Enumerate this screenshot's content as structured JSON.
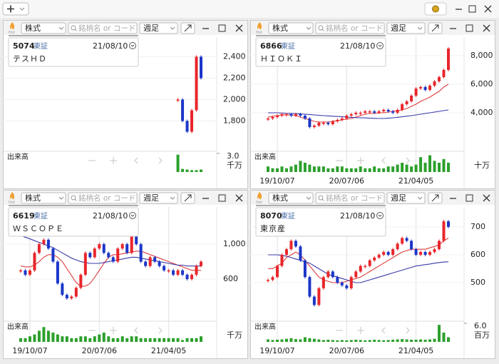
{
  "panels": [
    {
      "hot": "Hot",
      "market_select": "株式",
      "search_placeholder": "銘柄名 or コード",
      "period_select": "週足",
      "code": "5074",
      "exchange": "東証",
      "date": "21/08/10",
      "name": "テスＨＤ",
      "volume_label": "出来高",
      "volume_unit": "千万",
      "chart_data": {
        "type": "stock",
        "up_color": "#e8262b",
        "down_color": "#1c36c8",
        "values": [
          null,
          null,
          null,
          null,
          null,
          null,
          null,
          null,
          null,
          null,
          null,
          null,
          null,
          null,
          null,
          null,
          null,
          null,
          null,
          null,
          null,
          null,
          null,
          null,
          null,
          null,
          null,
          null,
          null,
          null,
          null,
          null,
          null,
          null,
          2000,
          1800,
          1700,
          1900,
          2400,
          2200
        ],
        "ylim": [
          1530,
          2530
        ],
        "yticks": [
          {
            "value": 1800,
            "label": "1,800"
          },
          {
            "value": 2000,
            "label": "2,000"
          },
          {
            "value": 2200,
            "label": "2,200"
          },
          {
            "value": 2400,
            "label": "2,400"
          }
        ],
        "volume": {
          "color": "#2ca02c",
          "values": [
            null,
            null,
            null,
            null,
            null,
            null,
            null,
            null,
            null,
            null,
            null,
            null,
            null,
            null,
            null,
            null,
            null,
            null,
            null,
            null,
            null,
            null,
            null,
            null,
            null,
            null,
            null,
            null,
            null,
            null,
            null,
            null,
            null,
            null,
            2.8,
            0.5,
            0.4,
            0.3,
            0.3,
            0.4
          ],
          "ylim": [
            0,
            3
          ],
          "yticks": [
            {
              "value": 3,
              "label": "3.0"
            }
          ]
        }
      }
    },
    {
      "hot": "Hot",
      "market_select": "株式",
      "search_placeholder": "銘柄名 or コード",
      "period_select": "週足",
      "code": "6866",
      "exchange": "東証",
      "date": "21/08/10",
      "name": "ＨＩＯＫＩ",
      "volume_label": "出来高",
      "volume_unit": "十万",
      "chart_data": {
        "type": "stock",
        "up_color": "#e8262b",
        "down_color": "#1c36c8",
        "categories": [
          null,
          null,
          "19/10/07",
          null,
          null,
          null,
          null,
          null,
          null,
          null,
          null,
          null,
          null,
          null,
          null,
          null,
          null,
          "20/07/06",
          null,
          null,
          null,
          null,
          null,
          null,
          null,
          null,
          null,
          null,
          null,
          null,
          null,
          null,
          "21/04/05",
          null,
          null,
          null,
          null,
          null,
          null,
          null
        ],
        "values": [
          3600,
          3700,
          3800,
          3900,
          3900,
          3800,
          3900,
          3800,
          3600,
          3000,
          3100,
          3300,
          3300,
          3200,
          3400,
          3500,
          3600,
          3800,
          3900,
          4000,
          4000,
          4100,
          4100,
          4000,
          4100,
          4200,
          4100,
          4000,
          4200,
          4600,
          4800,
          5200,
          5700,
          5800,
          5600,
          5900,
          6200,
          6500,
          7000,
          8500
        ],
        "series": [
          {
            "color": "#e03c3c",
            "values": [
              3700,
              3750,
              3800,
              3850,
              3850,
              3850,
              3800,
              3700,
              3600,
              3500,
              3400,
              3350,
              3350,
              3350,
              3400,
              3450,
              3500,
              3550,
              3600,
              3700,
              3800,
              3900,
              3950,
              3950,
              4000,
              4000,
              4050,
              4100,
              4150,
              4200,
              4300,
              4450,
              4600,
              4800,
              4950,
              5100,
              5300,
              5500,
              5800,
              6000
            ]
          },
          {
            "color": "#3a3aa8",
            "values": [
              4000,
              4000,
              4000,
              3980,
              3960,
              3950,
              3940,
              3920,
              3900,
              3880,
              3850,
              3820,
              3800,
              3780,
              3760,
              3740,
              3720,
              3700,
              3680,
              3660,
              3650,
              3640,
              3620,
              3610,
              3600,
              3600,
              3620,
              3650,
              3680,
              3720,
              3760,
              3800,
              3850,
              3900,
              3950,
              4000,
              4050,
              4100,
              4150,
              4200
            ]
          }
        ],
        "ylim": [
          1400,
          8900
        ],
        "yticks": [
          {
            "value": 4000,
            "label": "4,000"
          },
          {
            "value": 6000,
            "label": "6,000"
          },
          {
            "value": 8000,
            "label": "8,000"
          }
        ],
        "volume": {
          "color": "#2ca02c",
          "values": [
            3,
            2,
            2,
            3,
            2,
            3,
            4,
            6,
            5,
            4,
            3,
            3,
            3,
            2,
            2,
            3,
            3,
            2,
            2,
            2,
            3,
            2,
            2,
            3,
            2,
            2,
            3,
            3,
            4,
            5,
            4,
            3,
            4,
            8,
            5,
            9,
            6,
            5,
            7,
            5
          ],
          "ylim": [
            0,
            10
          ]
        }
      }
    },
    {
      "hot": "Hot",
      "market_select": "株式",
      "search_placeholder": "銘柄名 or コード",
      "period_select": "週足",
      "code": "6619",
      "exchange": "東証",
      "date": "21/08/10",
      "name": "ＷＳＣＯＰＥ",
      "volume_label": "出来高",
      "volume_unit": "千万",
      "chart_data": {
        "type": "stock",
        "up_color": "#e8262b",
        "down_color": "#1c36c8",
        "categories": [
          null,
          null,
          "19/10/07",
          null,
          null,
          null,
          null,
          null,
          null,
          null,
          null,
          null,
          null,
          null,
          null,
          null,
          null,
          "20/07/06",
          null,
          null,
          null,
          null,
          null,
          null,
          null,
          null,
          null,
          null,
          null,
          null,
          null,
          null,
          "21/04/05",
          null,
          null,
          null,
          null,
          null,
          null,
          null
        ],
        "values": [
          700,
          650,
          700,
          900,
          1000,
          1050,
          950,
          800,
          550,
          420,
          380,
          400,
          500,
          650,
          900,
          850,
          950,
          1000,
          900,
          850,
          800,
          950,
          1000,
          900,
          1100,
          1000,
          800,
          750,
          850,
          800,
          750,
          700,
          700,
          650,
          700,
          650,
          600,
          650,
          750,
          800
        ],
        "series": [
          {
            "color": "#e03c3c",
            "values": [
              750,
              740,
              740,
              760,
              800,
              850,
              880,
              880,
              850,
              800,
              720,
              640,
              560,
              520,
              520,
              550,
              620,
              700,
              780,
              850,
              880,
              880,
              890,
              900,
              910,
              920,
              920,
              900,
              880,
              860,
              840,
              820,
              800,
              780,
              760,
              740,
              720,
              700,
              700,
              700
            ]
          },
          {
            "color": "#3a3aa8",
            "values": [
              1100,
              1080,
              1060,
              1040,
              1020,
              1000,
              980,
              960,
              930,
              900,
              870,
              840,
              820,
              800,
              790,
              780,
              780,
              780,
              790,
              800,
              810,
              820,
              830,
              840,
              850,
              850,
              840,
              830,
              820,
              810,
              800,
              790,
              780,
              770,
              760,
              760,
              750,
              750,
              750,
              750
            ]
          }
        ],
        "ylim": [
          135,
          1360
        ],
        "yticks": [
          600,
          {
            "value": 1000,
            "label": "1,000"
          }
        ],
        "volume": {
          "color": "#2ca02c",
          "values": [
            2,
            2,
            3,
            4,
            6,
            8,
            6,
            5,
            4,
            3,
            3,
            2,
            2,
            3,
            3,
            2,
            3,
            4,
            5,
            3,
            2,
            2,
            3,
            2,
            3,
            3,
            2,
            2,
            2,
            2,
            2,
            2,
            2,
            2,
            2,
            1,
            2,
            2,
            2,
            3
          ],
          "ylim": [
            0,
            10
          ]
        }
      }
    },
    {
      "hot": "Hot",
      "market_select": "株式",
      "search_placeholder": "銘柄名 or コード",
      "period_select": "週足",
      "code": "8070",
      "exchange": "東証",
      "date": "21/08/10",
      "name": "東京産",
      "volume_label": "出来高",
      "volume_unit": "百万",
      "chart_data": {
        "type": "stock",
        "up_color": "#e8262b",
        "down_color": "#1c36c8",
        "categories": [
          null,
          null,
          "19/10/07",
          null,
          null,
          null,
          null,
          null,
          null,
          null,
          null,
          null,
          null,
          null,
          null,
          null,
          null,
          "20/07/06",
          null,
          null,
          null,
          null,
          null,
          null,
          null,
          null,
          null,
          null,
          null,
          null,
          null,
          null,
          "21/04/05",
          null,
          null,
          null,
          null,
          null,
          null,
          null
        ],
        "values": [
          510,
          520,
          560,
          600,
          620,
          650,
          630,
          580,
          520,
          450,
          420,
          480,
          520,
          540,
          520,
          500,
          490,
          480,
          520,
          540,
          560,
          560,
          580,
          590,
          600,
          610,
          600,
          620,
          640,
          660,
          650,
          620,
          600,
          610,
          600,
          610,
          620,
          650,
          720,
          700
        ],
        "series": [
          {
            "color": "#e03c3c",
            "values": [
              550,
              550,
              560,
              570,
              590,
              600,
              610,
              600,
              580,
              560,
              540,
              520,
              510,
              505,
              500,
              500,
              500,
              505,
              510,
              515,
              520,
              530,
              540,
              550,
              560,
              570,
              580,
              590,
              600,
              610,
              615,
              620,
              620,
              620,
              620,
              625,
              630,
              635,
              650,
              660
            ]
          },
          {
            "color": "#3a3aa8",
            "values": [
              600,
              600,
              600,
              598,
              595,
              590,
              585,
              580,
              575,
              570,
              560,
              550,
              540,
              530,
              525,
              520,
              515,
              510,
              505,
              500,
              500,
              505,
              510,
              515,
              520,
              525,
              530,
              535,
              540,
              545,
              550,
              555,
              560,
              562,
              565,
              567,
              570,
              572,
              574,
              575
            ]
          }
        ],
        "ylim": [
          367,
          751
        ],
        "yticks": [
          500,
          600,
          700
        ],
        "volume": {
          "color": "#2ca02c",
          "values": [
            0.8,
            0.6,
            0.7,
            0.8,
            1,
            1.2,
            0.9,
            0.8,
            1.5,
            1.2,
            1,
            0.8,
            0.6,
            0.7,
            0.6,
            0.5,
            0.6,
            0.5,
            0.6,
            0.7,
            0.6,
            0.5,
            0.6,
            0.7,
            0.6,
            0.5,
            0.6,
            0.7,
            0.8,
            0.9,
            0.8,
            0.7,
            0.7,
            0.8,
            0.7,
            0.8,
            1,
            5.5,
            3,
            1.5
          ],
          "ylim": [
            0,
            6
          ],
          "yticks": [
            {
              "value": 6,
              "label": "6.0"
            }
          ]
        }
      }
    }
  ]
}
